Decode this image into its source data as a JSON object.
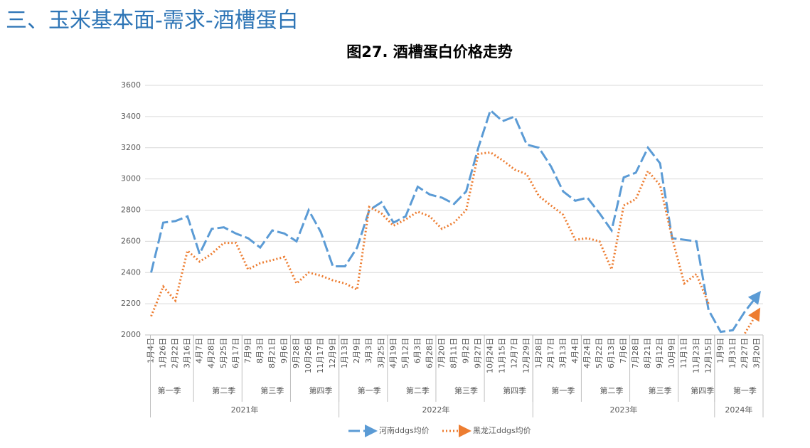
{
  "header": {
    "title": "三、玉米基本面-需求-酒槽蛋白"
  },
  "chart_data": {
    "type": "line",
    "title": "图27. 酒槽蛋白价格走势",
    "years": [
      {
        "name": "2021年",
        "quarters": [
          {
            "name": "第一季",
            "categories": [
              "1月4日",
              "1月26日",
              "2月22日",
              "3月16日"
            ]
          },
          {
            "name": "第二季",
            "categories": [
              "4月7日",
              "4月28日",
              "5月25日",
              "6月17日"
            ]
          },
          {
            "name": "第三季",
            "categories": [
              "7月9日",
              "8月3日",
              "8月21日",
              "9月6日"
            ]
          },
          {
            "name": "第四季",
            "categories": [
              "9月28日",
              "10月26日",
              "11月17日",
              "12月9日"
            ]
          }
        ]
      },
      {
        "name": "2022年",
        "quarters": [
          {
            "name": "第一季",
            "categories": [
              "1月13日",
              "2月9日",
              "3月3日",
              "3月25日"
            ]
          },
          {
            "name": "第二季",
            "categories": [
              "4月19日",
              "5月12日",
              "6月3日",
              "6月28日"
            ]
          },
          {
            "name": "第三季",
            "categories": [
              "7月20日",
              "8月11日",
              "9月2日",
              "9月27日"
            ]
          },
          {
            "name": "第四季",
            "categories": [
              "10月24日",
              "11月15日",
              "12月7日",
              "12月29日"
            ]
          }
        ]
      },
      {
        "name": "2023年",
        "quarters": [
          {
            "name": "第一季",
            "categories": [
              "1月28日",
              "2月17日",
              "3月13日",
              "4月4日"
            ]
          },
          {
            "name": "第二季",
            "categories": [
              "4月24日",
              "5月22日",
              "6月13日",
              "7月6日"
            ]
          },
          {
            "name": "第三季",
            "categories": [
              "7月28日",
              "8月21日",
              "9月12日",
              "10月9日"
            ]
          },
          {
            "name": "第四季",
            "categories": [
              "11月1日",
              "11月23日",
              "12月15日"
            ]
          }
        ]
      },
      {
        "name": "2024年",
        "quarters": [
          {
            "name": "第一季",
            "categories": [
              "1月9日",
              "1月31日",
              "2月27日",
              "3月20日"
            ]
          }
        ]
      }
    ],
    "series": [
      {
        "name": "河南ddgs均价",
        "color": "#5b9bd5",
        "style": "dashed",
        "values": [
          2400,
          2720,
          2730,
          2760,
          2520,
          2680,
          2690,
          2650,
          2620,
          2560,
          2670,
          2650,
          2600,
          2800,
          2660,
          2440,
          2440,
          2560,
          2800,
          2850,
          2720,
          2760,
          2950,
          2900,
          2880,
          2840,
          2920,
          3200,
          3440,
          3370,
          3400,
          3220,
          3200,
          3080,
          2920,
          2860,
          2880,
          2780,
          2670,
          3010,
          3040,
          3200,
          3100,
          2620,
          2610,
          2600,
          2160,
          2020,
          2030,
          2150,
          2250
        ]
      },
      {
        "name": "黑龙江ddgs均价",
        "color": "#ed7d31",
        "style": "dotted",
        "values": [
          2120,
          2310,
          2220,
          2540,
          2470,
          2520,
          2590,
          2590,
          2420,
          2460,
          2480,
          2500,
          2330,
          2400,
          2380,
          2350,
          2330,
          2290,
          2820,
          2780,
          2700,
          2740,
          2790,
          2760,
          2680,
          2720,
          2800,
          3160,
          3170,
          3120,
          3060,
          3030,
          2890,
          2830,
          2770,
          2610,
          2620,
          2600,
          2420,
          2830,
          2870,
          3050,
          2960,
          2620,
          2330,
          2390,
          2200,
          null,
          null,
          2010,
          2140
        ]
      }
    ],
    "ylim": [
      2000,
      3600
    ],
    "yticks": [
      2000,
      2200,
      2400,
      2600,
      2800,
      3000,
      3200,
      3400,
      3600
    ],
    "grid": true,
    "legend": "bottom"
  }
}
